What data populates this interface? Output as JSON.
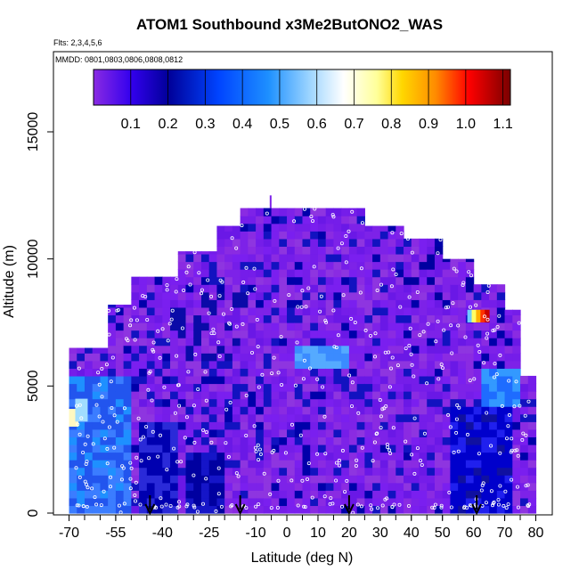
{
  "chart_data": {
    "type": "heatmap",
    "title": "ATOM1 Southbound x3Me2ButONO2_WAS",
    "subtitle_flights": "Flts: 2,3,4,5,6",
    "subtitle_dates": "MMDD: 0801,0803,0806,0808,0812",
    "xlabel": "Latitude (deg N)",
    "ylabel": "Altitude (m)",
    "xlim": [
      -70,
      80
    ],
    "ylim": [
      0,
      17000
    ],
    "x_ticks": [
      "-70",
      "-55",
      "-40",
      "-25",
      "-10",
      "0",
      "10",
      "20",
      "30",
      "40",
      "50",
      "60",
      "70",
      "80"
    ],
    "y_ticks": [
      "0",
      "5000",
      "10000",
      "15000"
    ],
    "colorbar": {
      "range": [
        0,
        1.12
      ],
      "ticks": [
        "0.1",
        "0.2",
        "0.3",
        "0.4",
        "0.5",
        "0.6",
        "0.7",
        "0.8",
        "0.9",
        "1.0",
        "1.1"
      ]
    },
    "arrows_latitude": [
      -44,
      -15,
      20,
      61
    ],
    "grid": false,
    "legend": "none"
  }
}
